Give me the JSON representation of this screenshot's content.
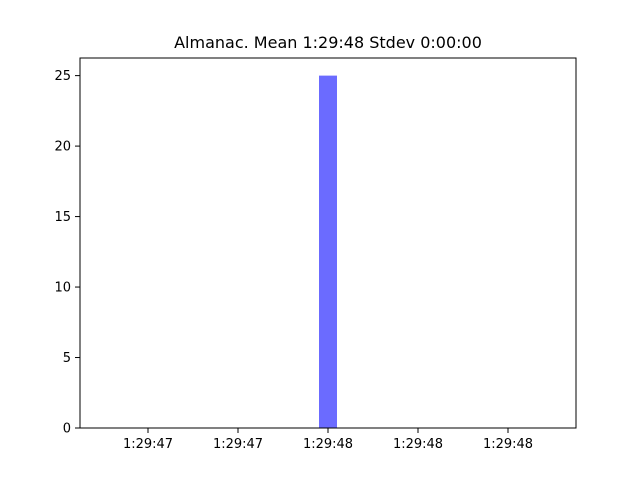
{
  "chart_data": {
    "type": "bar",
    "title": "Almanac. Mean 1:29:48 Stdev 0:00:00",
    "xlabel": "",
    "ylabel": "",
    "x_tick_labels": [
      "1:29:47",
      "1:29:47",
      "1:29:48",
      "1:29:48",
      "1:29:48"
    ],
    "y_ticks": [
      0,
      5,
      10,
      15,
      20,
      25
    ],
    "ylim": [
      0,
      26.25
    ],
    "bars": [
      {
        "label": "1:29:48",
        "value": 25
      }
    ],
    "grid": false,
    "bar_color": "#6b6bff"
  }
}
